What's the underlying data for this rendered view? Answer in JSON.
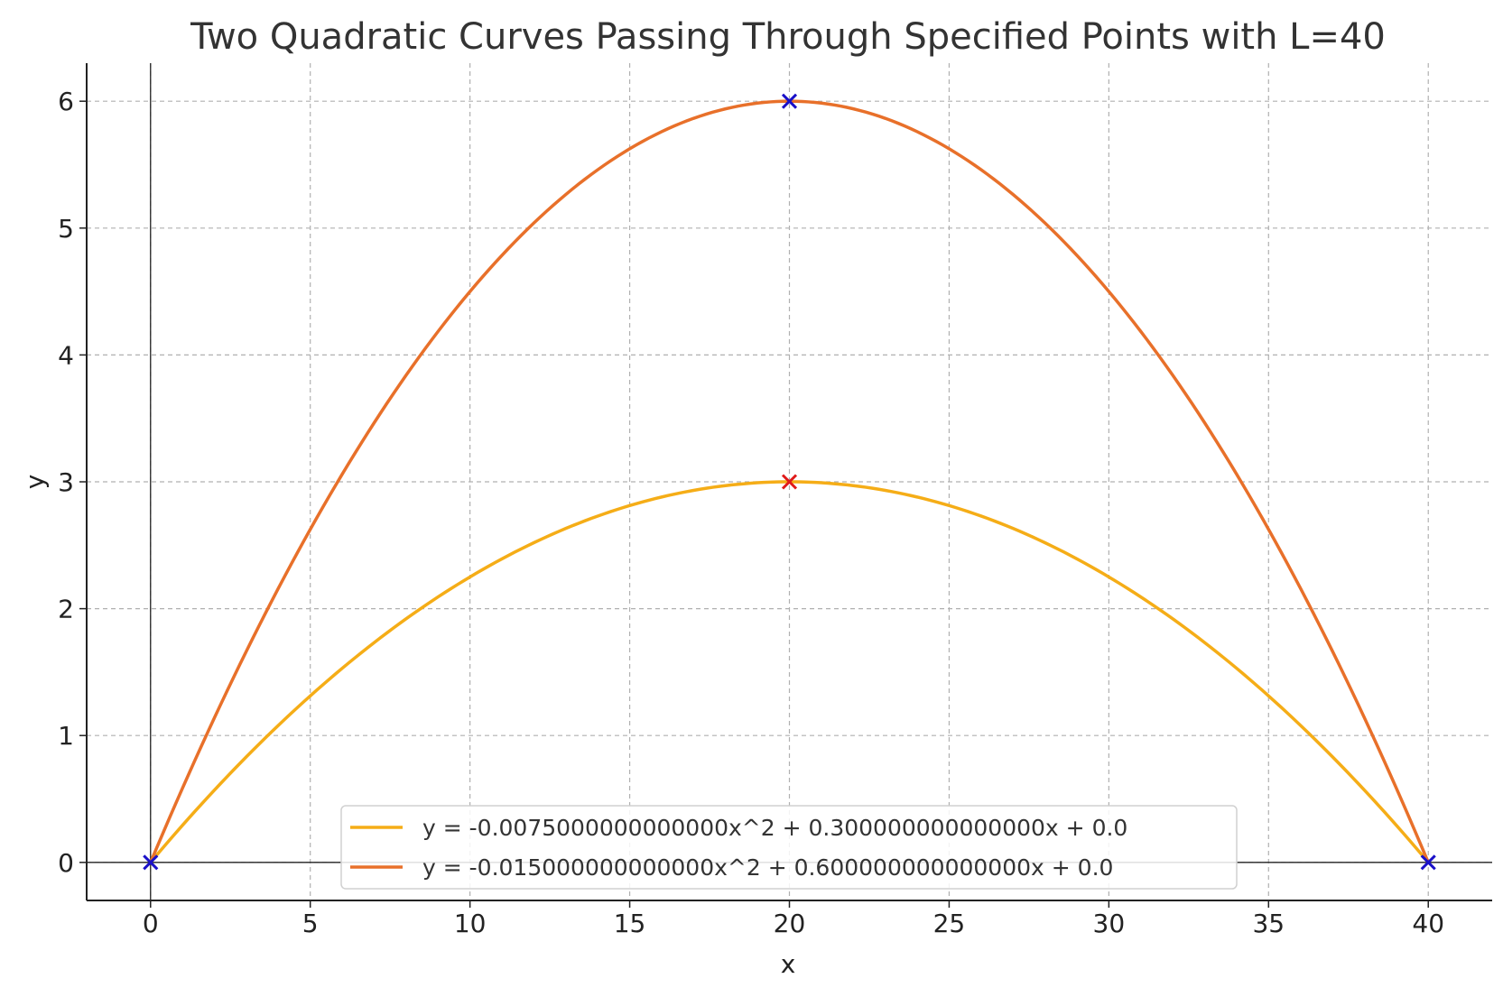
{
  "chart_data": {
    "type": "line",
    "title": "Two Quadratic Curves Passing Through Specified Points with L=40",
    "xlabel": "x",
    "ylabel": "y",
    "xlim": [
      -2,
      42
    ],
    "ylim": [
      -0.3,
      6.3
    ],
    "x_ticks": [
      0,
      5,
      10,
      15,
      20,
      25,
      30,
      35,
      40
    ],
    "y_ticks": [
      0,
      1,
      2,
      3,
      4,
      5,
      6
    ],
    "grid": true,
    "legend_position": "lower-center",
    "series": [
      {
        "name": "y = -0.0075000000000000x^2 + 0.300000000000000x + 0.0",
        "color": "#f5ad17",
        "coefficients": {
          "a": -0.0075,
          "b": 0.3,
          "c": 0.0
        },
        "x_range": [
          0,
          40
        ]
      },
      {
        "name": "y = -0.015000000000000x^2 + 0.600000000000000x + 0.0",
        "color": "#e8702a",
        "coefficients": {
          "a": -0.015,
          "b": 0.6,
          "c": 0.0
        },
        "x_range": [
          0,
          40
        ]
      }
    ],
    "markers": [
      {
        "x": 0,
        "y": 0,
        "color": "#1a10c8",
        "symbol": "x"
      },
      {
        "x": 40,
        "y": 0,
        "color": "#1a10c8",
        "symbol": "x"
      },
      {
        "x": 20,
        "y": 6,
        "color": "#1a10c8",
        "symbol": "x"
      },
      {
        "x": 20,
        "y": 3,
        "color": "#e01a1a",
        "symbol": "x"
      }
    ],
    "reference_lines": {
      "x": 0,
      "y": 0
    }
  }
}
